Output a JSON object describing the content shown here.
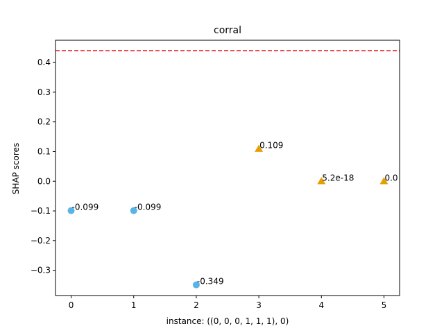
{
  "chart_data": {
    "type": "scatter",
    "title": "corral",
    "xlabel": "instance: ((0, 0, 0, 1, 1, 1), 0)",
    "ylabel": "SHAP scores",
    "xlim": [
      -0.25,
      5.25
    ],
    "ylim": [
      -0.385,
      0.475
    ],
    "xticks": [
      "0",
      "1",
      "2",
      "3",
      "4",
      "5"
    ],
    "yticks": [
      "−0.3",
      "−0.2",
      "−0.1",
      "0.0",
      "0.1",
      "0.2",
      "0.3",
      "0.4"
    ],
    "grid": false,
    "reference_line": {
      "y": 0.44,
      "color": "#e41a1c",
      "style": "dashed"
    },
    "series": [
      {
        "marker": "circle",
        "color": "#56b4e9",
        "points": [
          {
            "x": 0,
            "y": -0.099,
            "label": "-0.099"
          },
          {
            "x": 1,
            "y": -0.099,
            "label": "-0.099"
          },
          {
            "x": 2,
            "y": -0.349,
            "label": "-0.349"
          }
        ]
      },
      {
        "marker": "triangle",
        "color": "#e69f00",
        "points": [
          {
            "x": 3,
            "y": 0.109,
            "label": "0.109"
          },
          {
            "x": 4,
            "y": 0.0,
            "label": "5.2e-18"
          },
          {
            "x": 5,
            "y": 0.0,
            "label": "0.0"
          }
        ]
      }
    ]
  }
}
